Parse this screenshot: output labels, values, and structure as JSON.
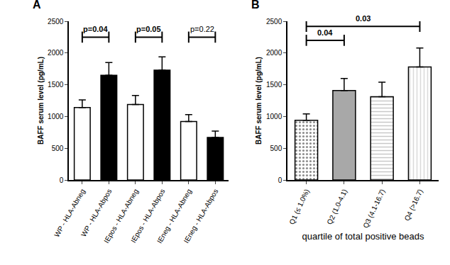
{
  "chart_data": [
    {
      "type": "bar",
      "panel": "A",
      "y_label": "BAFF serum level (pg/mL)",
      "categories": [
        "WP - HLA-Abneg",
        "WP - HLA-Abpos",
        "IEpos - HLA-Abneg",
        "IEpos - HLA-Abpos",
        "IEneg - HLA-Abneg",
        "IEneg - HLA-Abpos"
      ],
      "values": [
        1140,
        1650,
        1190,
        1730,
        920,
        670
      ],
      "error": [
        120,
        200,
        140,
        210,
        110,
        100
      ],
      "colors": [
        "#ffffff",
        "#000000",
        "#ffffff",
        "#000000",
        "#ffffff",
        "#000000"
      ],
      "ylim": [
        0,
        2500
      ],
      "yticks": [
        0,
        500,
        1000,
        1500,
        2000,
        2500
      ],
      "grid": false,
      "annotations": [
        {
          "text": "p=0.04",
          "from": 0,
          "to": 1,
          "y": 2250
        },
        {
          "text": "p=0.05",
          "from": 2,
          "to": 3,
          "y": 2250
        },
        {
          "text": "p=0.22",
          "from": 4,
          "to": 5,
          "y": 2250
        }
      ]
    },
    {
      "type": "bar",
      "panel": "B",
      "y_label": "BAFF serum level (pg/mL)",
      "x_label": "quartile of total positive beads",
      "categories": [
        "Q1 (≤ 1.0%)",
        "Q2 (1.0-4.1)",
        "Q3 (4.1-16.7)",
        "Q4 (>16.7)"
      ],
      "values": [
        940,
        1410,
        1310,
        1780
      ],
      "error": [
        100,
        190,
        230,
        300
      ],
      "colors": [
        "#8c8c8c",
        "#a8a8a8",
        "#c8c8c8",
        "#d9d9d9"
      ],
      "ylim": [
        0,
        2500
      ],
      "yticks": [
        0,
        500,
        1000,
        1500,
        2000,
        2500
      ],
      "grid": false,
      "annotations": [
        {
          "text": "0.04",
          "from": 0,
          "to": 1,
          "y": 2200
        },
        {
          "text": "0.03",
          "from": 0,
          "to": 3,
          "y": 2420
        }
      ]
    }
  ]
}
